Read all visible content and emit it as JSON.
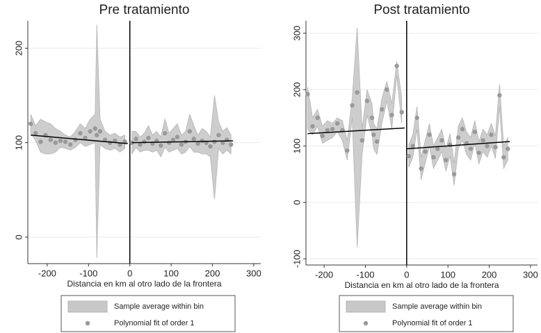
{
  "chart_data": [
    {
      "type": "scatter",
      "title": "Pre tratamiento",
      "xlabel": "Distancia en km al otro lado de la frontera",
      "xlim": [
        -247,
        317
      ],
      "xticks": [
        -200,
        -100,
        0,
        100,
        200,
        300
      ],
      "ylim": [
        -28,
        229
      ],
      "yticks": [
        0,
        100,
        200
      ],
      "grid": true,
      "cutoff": 0,
      "x": [
        -240,
        -228,
        -216,
        -204,
        -192,
        -180,
        -168,
        -156,
        -144,
        -132,
        -120,
        -108,
        -96,
        -84,
        -80,
        -72,
        -60,
        -48,
        -36,
        -24,
        -12,
        null,
        5,
        15,
        25,
        35,
        45,
        55,
        65,
        75,
        85,
        95,
        105,
        115,
        125,
        135,
        145,
        155,
        165,
        175,
        185,
        195,
        205,
        215,
        225,
        235,
        245
      ],
      "series": [
        {
          "name": "Sample average within bin",
          "color": "#c8c8c8",
          "low": [
            110,
            102,
            90,
            88,
            88,
            90,
            95,
            94,
            92,
            95,
            100,
            96,
            98,
            100,
            -22,
            98,
            94,
            92,
            94,
            90,
            94,
            null,
            88,
            95,
            90,
            92,
            92,
            90,
            92,
            85,
            95,
            90,
            92,
            94,
            88,
            90,
            96,
            90,
            90,
            88,
            88,
            85,
            40,
            94,
            88,
            92,
            88
          ],
          "high": [
            130,
            118,
            125,
            122,
            120,
            115,
            112,
            108,
            106,
            112,
            120,
            115,
            125,
            130,
            225,
            125,
            112,
            108,
            110,
            106,
            108,
            null,
            112,
            112,
            106,
            110,
            118,
            108,
            112,
            106,
            125,
            110,
            115,
            120,
            108,
            112,
            130,
            118,
            108,
            115,
            112,
            106,
            150,
            122,
            112,
            116,
            108
          ]
        },
        {
          "name": "Polynomial fit of order 1",
          "color": "#999999",
          "values": [
            120,
            110,
            101,
            108,
            103,
            100,
            102,
            101,
            98,
            103,
            110,
            105,
            112,
            115,
            108,
            112,
            103,
            100,
            102,
            98,
            101,
            null,
            100,
            104,
            98,
            101,
            105,
            99,
            102,
            97,
            110,
            100,
            103,
            106,
            98,
            101,
            112,
            104,
            99,
            102,
            100,
            96,
            101,
            108,
            100,
            103,
            98
          ]
        }
      ],
      "fit_lines": [
        {
          "x": [
            -240,
            -5
          ],
          "values": [
            108,
            99
          ]
        },
        {
          "x": [
            5,
            250
          ],
          "values": [
            100,
            102
          ]
        }
      ]
    },
    {
      "type": "scatter",
      "title": "Post tratamiento",
      "xlabel": "Distancia en km al otro lado de la frontera",
      "xlim": [
        -244,
        317
      ],
      "xticks": [
        -200,
        -100,
        0,
        100,
        200,
        300
      ],
      "ylim": [
        -111,
        322
      ],
      "yticks": [
        -100,
        0,
        100,
        200,
        300
      ],
      "grid": true,
      "cutoff": 0,
      "x": [
        -240,
        -228,
        -216,
        -204,
        -192,
        -180,
        -168,
        -156,
        -144,
        -132,
        -120,
        -108,
        -96,
        -84,
        -80,
        -72,
        -60,
        -48,
        -36,
        -24,
        -12,
        null,
        5,
        15,
        25,
        35,
        45,
        55,
        65,
        75,
        85,
        95,
        105,
        115,
        125,
        135,
        145,
        155,
        165,
        175,
        185,
        195,
        205,
        215,
        225,
        235,
        245
      ],
      "series": [
        {
          "name": "Sample average within bin",
          "color": "#c8c8c8",
          "low": [
            130,
            120,
            135,
            105,
            110,
            115,
            125,
            110,
            75,
            150,
            -80,
            85,
            155,
            120,
            95,
            85,
            140,
            180,
            130,
            225,
            140,
            null,
            62,
            80,
            130,
            40,
            70,
            100,
            60,
            75,
            90,
            55,
            82,
            30,
            95,
            110,
            85,
            75,
            105,
            68,
            90,
            80,
            100,
            78,
            170,
            60,
            75
          ],
          "high": [
            205,
            150,
            165,
            135,
            145,
            140,
            150,
            145,
            110,
            185,
            310,
            130,
            200,
            175,
            140,
            130,
            185,
            215,
            175,
            250,
            185,
            null,
            102,
            120,
            170,
            80,
            110,
            140,
            100,
            115,
            130,
            95,
            122,
            70,
            135,
            150,
            125,
            115,
            145,
            108,
            130,
            120,
            140,
            118,
            210,
            100,
            115
          ]
        },
        {
          "name": "Polynomial fit of order 1",
          "color": "#999999",
          "values": [
            192,
            135,
            150,
            118,
            128,
            130,
            140,
            128,
            92,
            172,
            195,
            110,
            180,
            150,
            120,
            108,
            165,
            200,
            155,
            242,
            160,
            null,
            82,
            100,
            150,
            60,
            90,
            120,
            80,
            95,
            110,
            75,
            102,
            50,
            115,
            130,
            105,
            95,
            125,
            88,
            110,
            100,
            120,
            98,
            190,
            80,
            95
          ]
        }
      ],
      "fit_lines": [
        {
          "x": [
            -240,
            -5
          ],
          "values": [
            122,
            132
          ]
        },
        {
          "x": [
            0,
            250
          ],
          "values": [
            95,
            108
          ]
        }
      ]
    }
  ]
}
